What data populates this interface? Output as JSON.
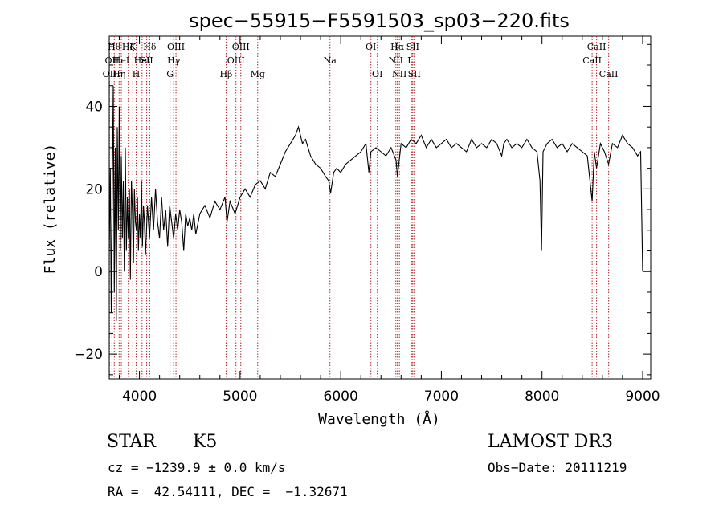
{
  "chart_data": {
    "type": "line",
    "title": "spec−55915−F5591503_sp03−220.fits",
    "xlabel": "Wavelength (Å)",
    "ylabel": "Flux (relative)",
    "xlim": [
      3700,
      9080
    ],
    "ylim": [
      -26,
      57
    ],
    "xticks": [
      {
        "v": 4000,
        "label": "4000"
      },
      {
        "v": 5000,
        "label": "5000"
      },
      {
        "v": 6000,
        "label": "6000"
      },
      {
        "v": 7000,
        "label": "7000"
      },
      {
        "v": 8000,
        "label": "8000"
      },
      {
        "v": 9000,
        "label": "9000"
      }
    ],
    "yticks": [
      {
        "v": -20,
        "label": "−20"
      },
      {
        "v": 0,
        "label": "0"
      },
      {
        "v": 20,
        "label": "20"
      },
      {
        "v": 40,
        "label": "40"
      }
    ],
    "line_color": "#000000",
    "marker_color": "#b22222",
    "series": [
      {
        "name": "flux",
        "points": [
          [
            3700,
            5
          ],
          [
            3710,
            25
          ],
          [
            3720,
            -10
          ],
          [
            3730,
            20
          ],
          [
            3740,
            45
          ],
          [
            3750,
            -5
          ],
          [
            3760,
            30
          ],
          [
            3770,
            -12
          ],
          [
            3780,
            35
          ],
          [
            3790,
            10
          ],
          [
            3800,
            40
          ],
          [
            3810,
            5
          ],
          [
            3820,
            28
          ],
          [
            3830,
            8
          ],
          [
            3840,
            22
          ],
          [
            3850,
            0
          ],
          [
            3860,
            30
          ],
          [
            3870,
            5
          ],
          [
            3880,
            18
          ],
          [
            3890,
            8
          ],
          [
            3900,
            20
          ],
          [
            3910,
            -2
          ],
          [
            3920,
            22
          ],
          [
            3930,
            15
          ],
          [
            3940,
            2
          ],
          [
            3950,
            20
          ],
          [
            3960,
            12
          ],
          [
            3970,
            10
          ],
          [
            3980,
            18
          ],
          [
            3990,
            5
          ],
          [
            4000,
            14
          ],
          [
            4010,
            8
          ],
          [
            4020,
            22
          ],
          [
            4030,
            6
          ],
          [
            4040,
            16
          ],
          [
            4050,
            12
          ],
          [
            4060,
            4
          ],
          [
            4080,
            16
          ],
          [
            4100,
            8
          ],
          [
            4120,
            18
          ],
          [
            4140,
            10
          ],
          [
            4160,
            20
          ],
          [
            4180,
            12
          ],
          [
            4200,
            8
          ],
          [
            4220,
            18
          ],
          [
            4240,
            10
          ],
          [
            4260,
            15
          ],
          [
            4280,
            6
          ],
          [
            4300,
            16
          ],
          [
            4320,
            12
          ],
          [
            4340,
            8
          ],
          [
            4360,
            14
          ],
          [
            4380,
            10
          ],
          [
            4400,
            15
          ],
          [
            4420,
            12
          ],
          [
            4440,
            5
          ],
          [
            4460,
            14
          ],
          [
            4480,
            11
          ],
          [
            4500,
            13
          ],
          [
            4520,
            10
          ],
          [
            4540,
            14
          ],
          [
            4560,
            9
          ],
          [
            4600,
            14
          ],
          [
            4650,
            16
          ],
          [
            4700,
            13
          ],
          [
            4750,
            17
          ],
          [
            4800,
            15
          ],
          [
            4850,
            18
          ],
          [
            4870,
            12
          ],
          [
            4900,
            17
          ],
          [
            4950,
            14
          ],
          [
            5000,
            18
          ],
          [
            5050,
            20
          ],
          [
            5100,
            18
          ],
          [
            5150,
            21
          ],
          [
            5200,
            22
          ],
          [
            5250,
            20
          ],
          [
            5300,
            24
          ],
          [
            5350,
            23
          ],
          [
            5400,
            26
          ],
          [
            5450,
            29
          ],
          [
            5500,
            31
          ],
          [
            5550,
            33
          ],
          [
            5580,
            35
          ],
          [
            5620,
            31
          ],
          [
            5650,
            32
          ],
          [
            5700,
            28
          ],
          [
            5750,
            26
          ],
          [
            5800,
            25
          ],
          [
            5850,
            23
          ],
          [
            5880,
            22
          ],
          [
            5900,
            19
          ],
          [
            5930,
            24
          ],
          [
            5960,
            25
          ],
          [
            6000,
            24
          ],
          [
            6050,
            26
          ],
          [
            6100,
            27
          ],
          [
            6150,
            28
          ],
          [
            6200,
            29
          ],
          [
            6250,
            31
          ],
          [
            6280,
            24
          ],
          [
            6300,
            29
          ],
          [
            6350,
            30
          ],
          [
            6400,
            29
          ],
          [
            6450,
            28
          ],
          [
            6500,
            30
          ],
          [
            6550,
            27
          ],
          [
            6563,
            23
          ],
          [
            6600,
            31
          ],
          [
            6650,
            30
          ],
          [
            6700,
            32
          ],
          [
            6750,
            31
          ],
          [
            6800,
            33
          ],
          [
            6850,
            30
          ],
          [
            6900,
            32
          ],
          [
            6950,
            30
          ],
          [
            7000,
            31
          ],
          [
            7050,
            32
          ],
          [
            7100,
            30
          ],
          [
            7150,
            31
          ],
          [
            7200,
            30
          ],
          [
            7250,
            29
          ],
          [
            7300,
            32
          ],
          [
            7350,
            30
          ],
          [
            7400,
            31
          ],
          [
            7450,
            30
          ],
          [
            7500,
            32
          ],
          [
            7550,
            31
          ],
          [
            7600,
            28
          ],
          [
            7620,
            31
          ],
          [
            7650,
            32
          ],
          [
            7700,
            30
          ],
          [
            7750,
            31
          ],
          [
            7800,
            30
          ],
          [
            7850,
            32
          ],
          [
            7900,
            30
          ],
          [
            7950,
            29
          ],
          [
            7980,
            22
          ],
          [
            7995,
            5
          ],
          [
            8010,
            29
          ],
          [
            8050,
            31
          ],
          [
            8100,
            32
          ],
          [
            8150,
            30
          ],
          [
            8200,
            31
          ],
          [
            8250,
            29
          ],
          [
            8300,
            31
          ],
          [
            8350,
            30
          ],
          [
            8400,
            29
          ],
          [
            8450,
            28
          ],
          [
            8498,
            17
          ],
          [
            8520,
            29
          ],
          [
            8542,
            25
          ],
          [
            8580,
            31
          ],
          [
            8620,
            29
          ],
          [
            8662,
            26
          ],
          [
            8700,
            31
          ],
          [
            8750,
            30
          ],
          [
            8800,
            33
          ],
          [
            8850,
            31
          ],
          [
            8900,
            30
          ],
          [
            8950,
            28
          ],
          [
            8980,
            29
          ],
          [
            9000,
            0
          ]
        ]
      }
    ],
    "line_markers": [
      {
        "x": 3704,
        "label": "OII",
        "row": 2
      },
      {
        "x": 3727,
        "label": "OII",
        "row": 1
      },
      {
        "x": 3750,
        "label": "Hθ",
        "row": 0
      },
      {
        "x": 3798,
        "label": "Hη",
        "row": 2
      },
      {
        "x": 3820,
        "label": "HeI",
        "row": 1
      },
      {
        "x": 3889,
        "label": "Hζ",
        "row": 0
      },
      {
        "x": 3934,
        "label": "K",
        "row": 0
      },
      {
        "x": 3968,
        "label": "H",
        "row": 2
      },
      {
        "x": 4026,
        "label": "HeI",
        "row": 1
      },
      {
        "x": 4072,
        "label": "SII",
        "row": 1
      },
      {
        "x": 4102,
        "label": "Hδ",
        "row": 0
      },
      {
        "x": 4304,
        "label": "G",
        "row": 2
      },
      {
        "x": 4340,
        "label": "Hγ",
        "row": 1
      },
      {
        "x": 4363,
        "label": "OIII",
        "row": 0
      },
      {
        "x": 4861,
        "label": "Hβ",
        "row": 2
      },
      {
        "x": 4959,
        "label": "OIII",
        "row": 1
      },
      {
        "x": 5007,
        "label": "OIII",
        "row": 0
      },
      {
        "x": 5175,
        "label": "Mg",
        "row": 2
      },
      {
        "x": 5893,
        "label": "Na",
        "row": 1
      },
      {
        "x": 6300,
        "label": "OI",
        "row": 0
      },
      {
        "x": 6364,
        "label": "OI",
        "row": 2
      },
      {
        "x": 6548,
        "label": "NII",
        "row": 1
      },
      {
        "x": 6563,
        "label": "Hα",
        "row": 0
      },
      {
        "x": 6583,
        "label": "NII",
        "row": 2
      },
      {
        "x": 6707,
        "label": "Li",
        "row": 1
      },
      {
        "x": 6716,
        "label": "SII",
        "row": 0
      },
      {
        "x": 6731,
        "label": "SII",
        "row": 2
      },
      {
        "x": 8498,
        "label": "CaII",
        "row": 1
      },
      {
        "x": 8542,
        "label": "CaII",
        "row": 0
      },
      {
        "x": 8662,
        "label": "CaII",
        "row": 2
      }
    ]
  },
  "info": {
    "object_class": "STAR",
    "subclass": "K5",
    "survey": "LAMOST DR3",
    "redshift": "cz = −1239.9 ± 0.0 km/s",
    "obs_date": "Obs−Date: 20111219",
    "coords": "RA =  42.54111, DEC =  −1.32671"
  }
}
